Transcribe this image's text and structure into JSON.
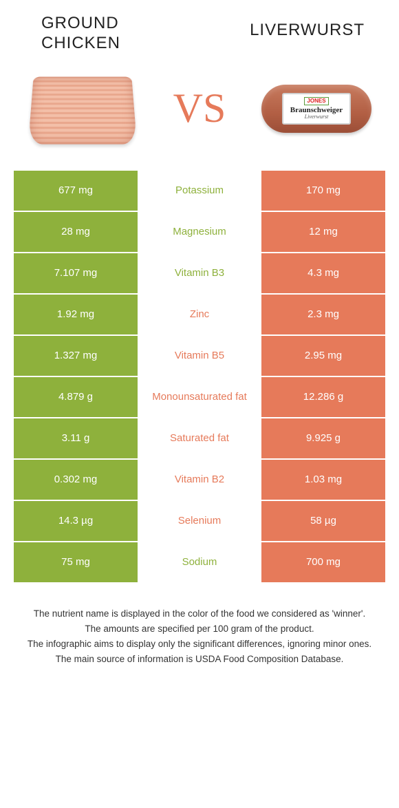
{
  "header": {
    "left_title": "GROUND CHICKEN",
    "right_title": "LIVERWURST",
    "vs_label": "VS"
  },
  "sausage_label": {
    "brand": "JONES",
    "main": "Braunschweiger",
    "sub": "Liverwurst"
  },
  "colors": {
    "left_bg": "#8eb13c",
    "right_bg": "#e67a5a",
    "left_text": "#ffffff",
    "right_text": "#ffffff",
    "mid_bg": "#ffffff"
  },
  "table": {
    "rows": [
      {
        "left": "677 mg",
        "label": "Potassium",
        "right": "170 mg",
        "winner": "green"
      },
      {
        "left": "28 mg",
        "label": "Magnesium",
        "right": "12 mg",
        "winner": "green"
      },
      {
        "left": "7.107 mg",
        "label": "Vitamin B3",
        "right": "4.3 mg",
        "winner": "green"
      },
      {
        "left": "1.92 mg",
        "label": "Zinc",
        "right": "2.3 mg",
        "winner": "orange"
      },
      {
        "left": "1.327 mg",
        "label": "Vitamin B5",
        "right": "2.95 mg",
        "winner": "orange"
      },
      {
        "left": "4.879 g",
        "label": "Monounsaturated fat",
        "right": "12.286 g",
        "winner": "orange"
      },
      {
        "left": "3.11 g",
        "label": "Saturated fat",
        "right": "9.925 g",
        "winner": "orange"
      },
      {
        "left": "0.302 mg",
        "label": "Vitamin B2",
        "right": "1.03 mg",
        "winner": "orange"
      },
      {
        "left": "14.3 µg",
        "label": "Selenium",
        "right": "58 µg",
        "winner": "orange"
      },
      {
        "left": "75 mg",
        "label": "Sodium",
        "right": "700 mg",
        "winner": "green"
      }
    ]
  },
  "footnotes": [
    "The nutrient name is displayed in the color of the food we considered as 'winner'.",
    "The amounts are specified per 100 gram of the product.",
    "The infographic aims to display only the significant differences, ignoring minor ones.",
    "The main source of information is USDA Food Composition Database."
  ]
}
